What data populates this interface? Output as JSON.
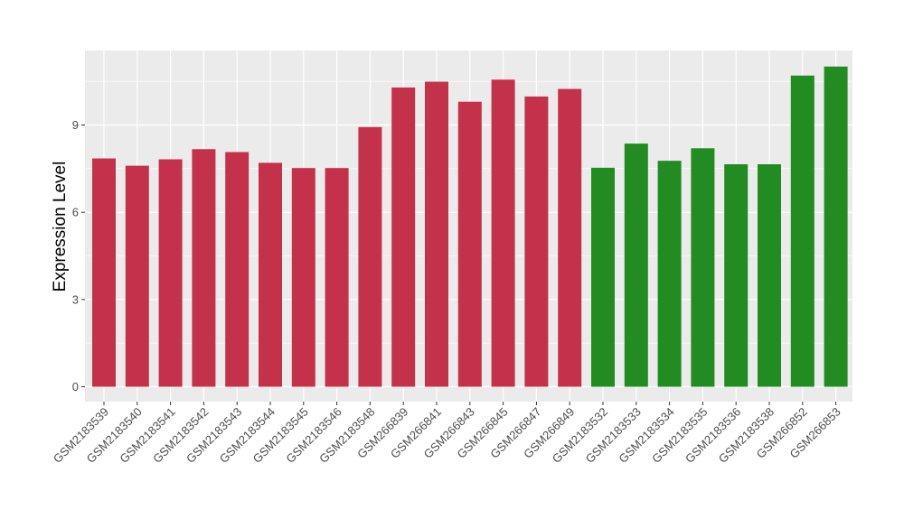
{
  "chart_data": {
    "type": "bar",
    "ylabel": "Expression Level",
    "xlabel": "",
    "title": "",
    "ylim": [
      0,
      11.6
    ],
    "yticks": [
      0,
      3,
      6,
      9
    ],
    "grid": true,
    "colors": {
      "group_a": "#C4314B",
      "group_b": "#228B22",
      "panel": "#EBEBEB",
      "grid": "#FFFFFF"
    },
    "categories": [
      "GSM2183539",
      "GSM2183540",
      "GSM2183541",
      "GSM2183542",
      "GSM2183543",
      "GSM2183544",
      "GSM2183545",
      "GSM2183546",
      "GSM2183548",
      "GSM266839",
      "GSM266841",
      "GSM266843",
      "GSM266845",
      "GSM266847",
      "GSM266849",
      "GSM2183532",
      "GSM2183533",
      "GSM2183534",
      "GSM2183535",
      "GSM2183536",
      "GSM2183538",
      "GSM266852",
      "GSM266853"
    ],
    "values": [
      7.85,
      7.6,
      7.82,
      8.17,
      8.07,
      7.7,
      7.52,
      7.52,
      8.93,
      10.29,
      10.49,
      9.8,
      10.56,
      9.98,
      10.24,
      7.53,
      8.36,
      7.77,
      8.2,
      7.65,
      7.65,
      10.7,
      11.01
    ],
    "groups": [
      "a",
      "a",
      "a",
      "a",
      "a",
      "a",
      "a",
      "a",
      "a",
      "a",
      "a",
      "a",
      "a",
      "a",
      "a",
      "b",
      "b",
      "b",
      "b",
      "b",
      "b",
      "b",
      "b"
    ]
  }
}
